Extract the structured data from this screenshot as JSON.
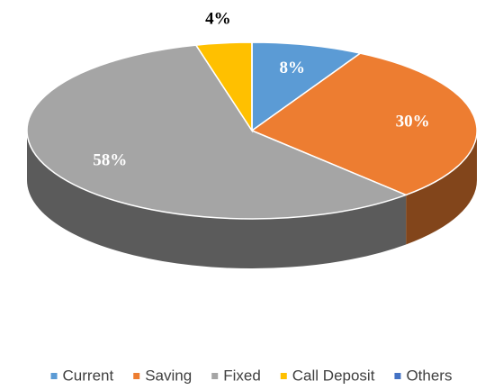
{
  "chart_data": {
    "type": "pie",
    "categories": [
      "Current",
      "Saving",
      "Fixed",
      "Call Deposit",
      "Others"
    ],
    "values": [
      8,
      30,
      58,
      4,
      0
    ],
    "value_labels": [
      "8%",
      "30%",
      "58%",
      "4%",
      null
    ],
    "colors": [
      "#5b9bd5",
      "#ed7d31",
      "#a5a5a5",
      "#ffc000",
      "#4472c4"
    ],
    "legend": "bottom"
  }
}
